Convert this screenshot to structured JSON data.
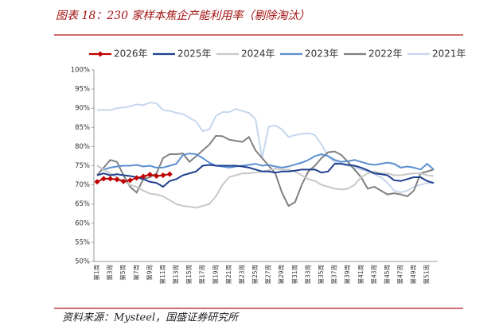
{
  "chart_data": {
    "type": "line",
    "title": "图表 18：230 家样本焦企产能利用率（剔除淘汰）",
    "source": "资料来源：Mysteel，国盛证券研究所",
    "categories": [
      "第1周",
      null,
      "第3周",
      null,
      "第5周",
      null,
      "第7周",
      null,
      "第9周",
      null,
      "第11周",
      null,
      "第13周",
      null,
      "第15周",
      null,
      "第17周",
      null,
      "第19周",
      null,
      "第21周",
      null,
      "第23周",
      null,
      "第25周",
      null,
      "第27周",
      null,
      "第29周",
      null,
      "第31周",
      null,
      "第33周",
      null,
      "第35周",
      null,
      "第37周",
      null,
      "第39周",
      null,
      "第41周",
      null,
      "第43周",
      null,
      "第45周",
      null,
      "第47周",
      null,
      "第49周",
      null,
      "第51周",
      null
    ],
    "ylim": [
      50,
      100
    ],
    "yticks": [
      {
        "value": 50,
        "label": "50%"
      },
      {
        "value": 55,
        "label": "55%"
      },
      {
        "value": 60,
        "label": "60%"
      },
      {
        "value": 65,
        "label": "65%"
      },
      {
        "value": 70,
        "label": "70%"
      },
      {
        "value": 75,
        "label": "75%"
      },
      {
        "value": 80,
        "label": "80%"
      },
      {
        "value": 85,
        "label": "85%"
      },
      {
        "value": 90,
        "label": "90%"
      },
      {
        "value": 95,
        "label": "95%"
      },
      {
        "value": 100,
        "label": "100%"
      }
    ],
    "grid": false,
    "legend": "top",
    "series": [
      {
        "name": "2026年",
        "color": "#c00000",
        "marker": "diamond",
        "values": [
          70.8,
          71.6,
          71.6,
          71.4,
          70.9,
          71.2,
          71.8,
          72.2,
          72.7,
          72.3,
          72.5,
          72.8,
          null,
          null,
          null,
          null,
          null,
          null,
          null,
          null,
          null,
          null,
          null,
          null,
          null,
          null,
          null,
          null,
          null,
          null,
          null,
          null,
          null,
          null,
          null,
          null,
          null,
          null,
          null,
          null,
          null,
          null,
          null,
          null,
          null,
          null,
          null,
          null,
          null,
          null,
          null,
          null
        ]
      },
      {
        "name": "2025年",
        "color": "#1f3f8f",
        "values": [
          72.5,
          73,
          72.5,
          72.8,
          72.5,
          72.3,
          72,
          71.5,
          70.8,
          70.5,
          69.5,
          71,
          71.5,
          72.5,
          73,
          73.5,
          75,
          75.2,
          75,
          75,
          75,
          75,
          74.8,
          74.5,
          74,
          73.5,
          73.5,
          73.2,
          73.5,
          73.5,
          73.7,
          74,
          74,
          74,
          73.2,
          73.5,
          75.5,
          75.5,
          75.2,
          75,
          74.5,
          73.8,
          73,
          72.8,
          72.5,
          71.2,
          71,
          71.5,
          72,
          72,
          71,
          70.5
        ]
      },
      {
        "name": "2024年",
        "color": "#c8c8c8",
        "values": [
          75,
          74,
          73,
          72,
          71,
          70,
          69.5,
          68.5,
          67.7,
          67.5,
          67,
          66,
          65,
          64.5,
          64.3,
          64,
          64.5,
          65,
          67,
          70,
          72,
          72.5,
          73,
          73,
          73.2,
          73.5,
          73.8,
          74.2,
          74,
          74,
          73.5,
          72.5,
          71.5,
          71,
          70,
          69.5,
          69,
          68.8,
          69,
          70,
          72,
          73,
          73.5,
          73,
          73,
          72.5,
          72.5,
          72.8,
          73,
          73,
          72.5,
          72.3
        ]
      },
      {
        "name": "2023年",
        "color": "#5b8fd0",
        "values": [
          75,
          74,
          74.5,
          74.8,
          75,
          75,
          75.2,
          74.8,
          75,
          74.5,
          74.5,
          75,
          75.5,
          77.8,
          78.2,
          78,
          77,
          75.8,
          75,
          74.8,
          74.5,
          74.8,
          75,
          75.2,
          75.5,
          75,
          75.2,
          74.8,
          74.5,
          74.8,
          75.3,
          75.8,
          76.5,
          77.5,
          78,
          77.5,
          76.5,
          76,
          76.2,
          76.5,
          76,
          75.5,
          75.2,
          75.5,
          75.8,
          75.5,
          74.5,
          74.8,
          74.5,
          74,
          75.5,
          74
        ]
      },
      {
        "name": "2022年",
        "color": "#808080",
        "values": [
          72.5,
          74.5,
          76.5,
          76,
          72.5,
          69.5,
          68,
          71.5,
          72,
          73,
          77,
          78,
          78,
          78.2,
          76,
          77.5,
          79,
          80.5,
          82.8,
          82.7,
          81.8,
          81.5,
          81.2,
          82.5,
          79,
          77,
          75,
          73,
          68,
          64.5,
          65.5,
          70,
          73.5,
          75,
          77,
          78.5,
          78.7,
          77.8,
          76,
          74,
          72,
          69,
          69.5,
          68.5,
          67.5,
          67.8,
          67.5,
          67,
          68.5,
          73,
          73.5,
          74
        ]
      },
      {
        "name": "2021年",
        "color": "#c5d7ee",
        "values": [
          89.5,
          89.6,
          89.5,
          90,
          90.2,
          90.5,
          91,
          90.8,
          91.5,
          91.3,
          89.5,
          89.3,
          88.8,
          88.5,
          87.5,
          86.5,
          84,
          84.5,
          88,
          89,
          89,
          89.8,
          89.3,
          88.8,
          87.2,
          77,
          85.2,
          85.5,
          84.5,
          82.5,
          83,
          83.3,
          83.5,
          83,
          80.5,
          77.5,
          76,
          75.5,
          75,
          74.5,
          74,
          73.5,
          72.8,
          72,
          70.5,
          68.5,
          68,
          68.5,
          69.5,
          70,
          70.5,
          70.5
        ]
      }
    ]
  }
}
